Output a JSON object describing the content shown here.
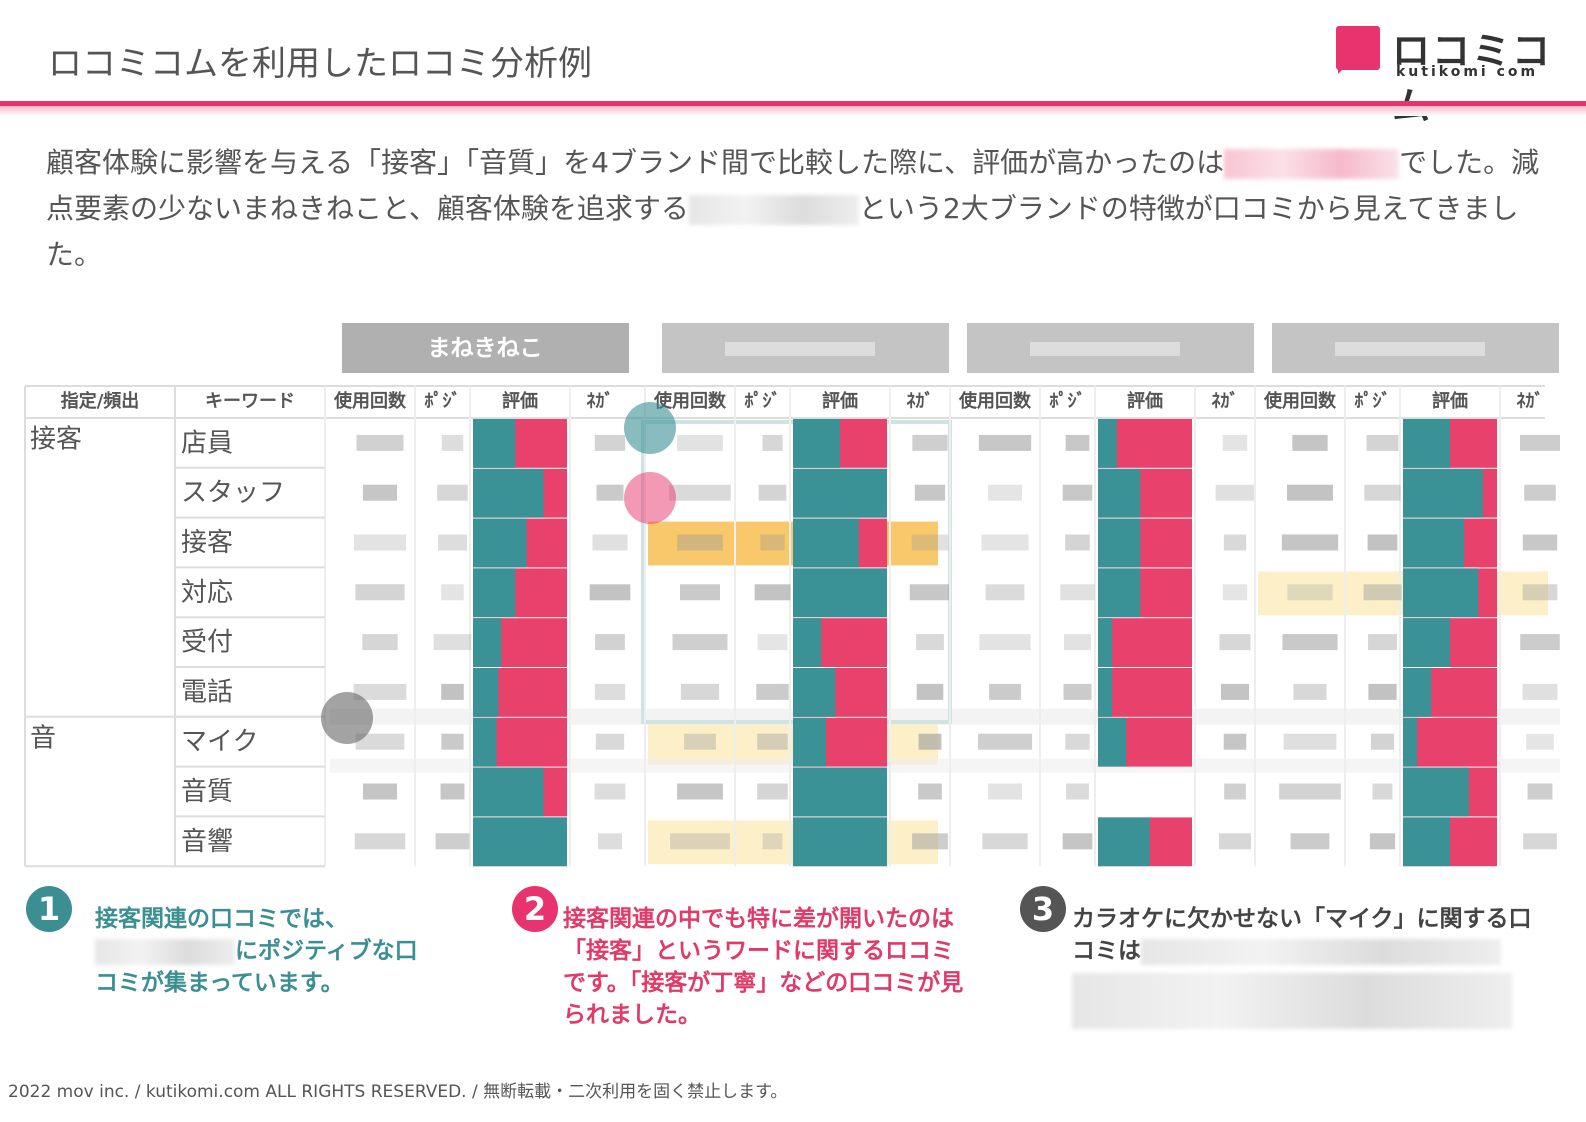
{
  "header": {
    "title": "ロコミコムを利用したロコミ分析例",
    "logo_text": "ロコミコム",
    "logo_sub": "kutikomi com"
  },
  "intro": {
    "parts": [
      "顧客体験に影響を与える「接客」「音質」を4ブランド間で比較した際に、評価が高かったのは",
      "でした。減点要素の少ないまねきねこと、顧客体験を追求する",
      "という2大ブランドの特徴が口コミから見えてきました。"
    ]
  },
  "table": {
    "header": {
      "group": "指定/頻出",
      "keyword": "キーワード",
      "count": "使用回数",
      "pos": "ﾎﾟｼﾞ",
      "rating": "評価",
      "neg": "ﾈｶﾞ"
    },
    "groups": [
      {
        "label": "接客",
        "keywords": [
          "店員",
          "スタッフ",
          "接客",
          "対応",
          "受付",
          "電話"
        ]
      },
      {
        "label": "音",
        "keywords": [
          "マイク",
          "音質",
          "音響"
        ]
      }
    ],
    "brands": [
      {
        "name": "まねきねこ",
        "ratings": [
          45,
          75,
          57,
          45,
          30,
          27,
          25,
          75,
          100
        ]
      },
      {
        "ratings": [
          50,
          100,
          70,
          100,
          30,
          45,
          35,
          100,
          100
        ]
      },
      {
        "ratings": [
          20,
          45,
          45,
          45,
          15,
          15,
          30,
          null,
          55
        ]
      },
      {
        "ratings": [
          50,
          85,
          65,
          80,
          50,
          30,
          15,
          70,
          50
        ]
      }
    ]
  },
  "notes": [
    {
      "number": "1",
      "parts": [
        "接客関連の口コミでは、",
        "にポジティブな口コミが集まっています。"
      ]
    },
    {
      "number": "2",
      "parts": [
        "接客関連の中でも特に差が開いたのは「接客」というワードに関するロコミです。「接客が丁寧」などの口コミが見られました。"
      ]
    },
    {
      "number": "3",
      "parts": [
        "カラオケに欠かせない「マイク」に関する口コミは"
      ]
    }
  ],
  "footer": {
    "text": "2022 mov inc. / kutikomi.com ALL RIGHTS RESERVED. / 無断転載・二次利用を固く禁止します。"
  }
}
